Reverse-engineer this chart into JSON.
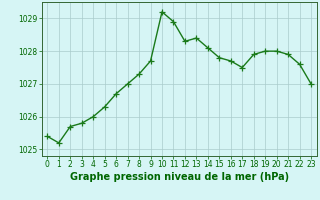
{
  "x": [
    0,
    1,
    2,
    3,
    4,
    5,
    6,
    7,
    8,
    9,
    10,
    11,
    12,
    13,
    14,
    15,
    16,
    17,
    18,
    19,
    20,
    21,
    22,
    23
  ],
  "y": [
    1025.4,
    1025.2,
    1025.7,
    1025.8,
    1026.0,
    1026.3,
    1026.7,
    1027.0,
    1027.3,
    1027.7,
    1029.2,
    1028.9,
    1028.3,
    1028.4,
    1028.1,
    1027.8,
    1027.7,
    1027.5,
    1027.9,
    1028.0,
    1028.0,
    1027.9,
    1027.6,
    1027.0
  ],
  "line_color": "#1a7a1a",
  "marker": "+",
  "markersize": 4,
  "linewidth": 1.0,
  "bg_color": "#d6f5f5",
  "grid_color": "#aacccc",
  "xlabel": "Graphe pression niveau de la mer (hPa)",
  "xlabel_fontsize": 7,
  "xlabel_color": "#006600",
  "xlabel_weight": "bold",
  "yticks": [
    1025,
    1026,
    1027,
    1028,
    1029
  ],
  "xticks": [
    0,
    1,
    2,
    3,
    4,
    5,
    6,
    7,
    8,
    9,
    10,
    11,
    12,
    13,
    14,
    15,
    16,
    17,
    18,
    19,
    20,
    21,
    22,
    23
  ],
  "ylim": [
    1024.8,
    1029.5
  ],
  "xlim": [
    -0.5,
    23.5
  ],
  "tick_fontsize": 5.5,
  "tick_color": "#006600",
  "spine_color": "#336633"
}
